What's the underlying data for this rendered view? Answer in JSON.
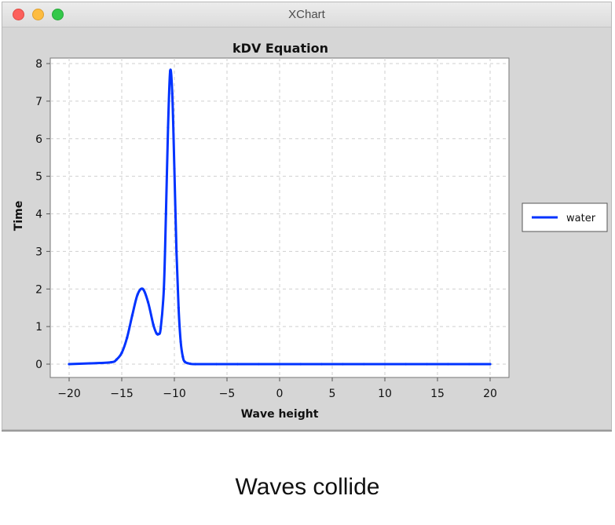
{
  "window": {
    "title": "XChart"
  },
  "caption": "Waves collide",
  "chart_data": {
    "type": "line",
    "title": "kDV Equation",
    "xlabel": "Wave height",
    "ylabel": "Time",
    "xlim": [
      -20,
      20
    ],
    "ylim": [
      0,
      8
    ],
    "xticks": [
      -20,
      -15,
      -10,
      -5,
      0,
      5,
      10,
      15,
      20
    ],
    "yticks": [
      0,
      1,
      2,
      3,
      4,
      5,
      6,
      7,
      8
    ],
    "grid": true,
    "legend": "right",
    "series": [
      {
        "name": "water",
        "color": "#0033ff",
        "x": [
          -20,
          -18,
          -16,
          -15.5,
          -15,
          -14.5,
          -14,
          -13.5,
          -13,
          -12.5,
          -12,
          -11.7,
          -11.5,
          -11.3,
          -11,
          -10.8,
          -10.6,
          -10.4,
          -10.2,
          -10,
          -9.8,
          -9.6,
          -9.4,
          -9.2,
          -9,
          -8.5,
          -8,
          -6,
          -4,
          -2,
          0,
          2,
          4,
          6,
          8,
          10,
          12,
          14,
          16,
          18,
          20
        ],
        "y": [
          0,
          0.02,
          0.05,
          0.12,
          0.3,
          0.7,
          1.3,
          1.85,
          2.0,
          1.65,
          1.05,
          0.82,
          0.8,
          0.95,
          2.0,
          4.0,
          6.3,
          7.8,
          7.2,
          5.2,
          3.0,
          1.5,
          0.6,
          0.2,
          0.06,
          0.01,
          0,
          0,
          0,
          0,
          0,
          0,
          0,
          0,
          0,
          0,
          0,
          0,
          0,
          0,
          0
        ]
      }
    ]
  }
}
